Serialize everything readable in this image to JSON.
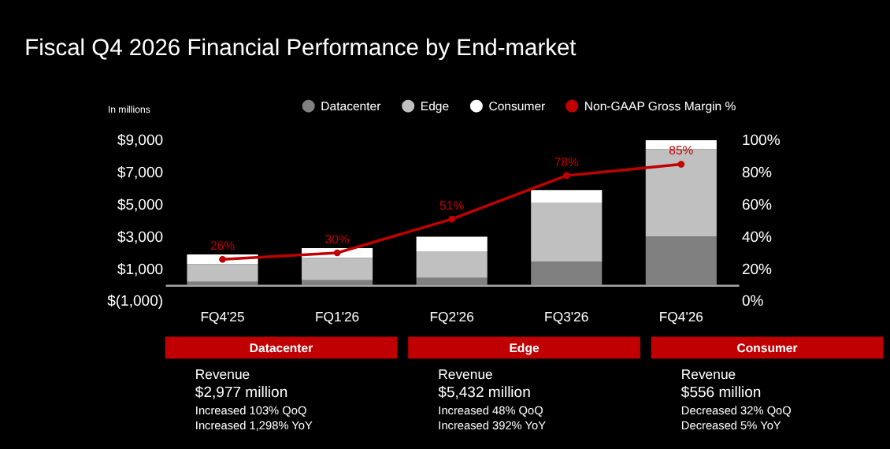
{
  "chart_data": [
    {
      "type": "bar",
      "title": "Fiscal Q4 2026 Financial Performance by End-market",
      "ylabel": "In millions",
      "categories": [
        "FQ4'25",
        "FQ1'26",
        "FQ2'26",
        "FQ3'26",
        "FQ4'26"
      ],
      "stacked": true,
      "series": [
        {
          "name": "Datacenter",
          "color": "#808080",
          "values": [
            200,
            300,
            450,
            1450,
            3000
          ]
        },
        {
          "name": "Edge",
          "color": "#c0c0c0",
          "values": [
            1100,
            1400,
            1650,
            3650,
            5450
          ]
        },
        {
          "name": "Consumer",
          "color": "#ffffff",
          "values": [
            600,
            600,
            900,
            800,
            550
          ]
        },
        {
          "name": "Non-GAAP Gross Margin %",
          "type": "line",
          "axis": "y2",
          "color": "#c00000",
          "values": [
            26,
            30,
            51,
            78,
            85
          ],
          "value_labels": [
            "26%",
            "30%",
            "51%",
            "78%",
            "85%"
          ]
        }
      ],
      "ylim": [
        -1000,
        9000
      ],
      "yticks": [
        {
          "value": -1000,
          "label": "$(1,000)"
        },
        {
          "value": 1000,
          "label": "$1,000"
        },
        {
          "value": 3000,
          "label": "$3,000"
        },
        {
          "value": 5000,
          "label": "$5,000"
        },
        {
          "value": 7000,
          "label": "$7,000"
        },
        {
          "value": 9000,
          "label": "$9,000"
        }
      ],
      "y2lim": [
        0,
        100
      ],
      "y2ticks": [
        {
          "value": 0,
          "label": "0%"
        },
        {
          "value": 20,
          "label": "20%"
        },
        {
          "value": 40,
          "label": "40%"
        },
        {
          "value": 60,
          "label": "60%"
        },
        {
          "value": 80,
          "label": "80%"
        },
        {
          "value": 100,
          "label": "100%"
        }
      ],
      "marker": "circle",
      "grid": false,
      "legend": "top"
    },
    {
      "type": "other",
      "title": "Datacenter",
      "annotations": [
        "Revenue",
        "$2,977 million",
        "Increased 103% QoQ",
        "Increased 1,298% YoY"
      ]
    },
    {
      "type": "other",
      "title": "Edge",
      "annotations": [
        "Revenue",
        "$5,432 million",
        "Increased 48% QoQ",
        "Increased 392% YoY"
      ]
    },
    {
      "type": "other",
      "title": "Consumer",
      "annotations": [
        "Revenue",
        "$556 million",
        "Decreased 32% QoQ",
        "Decreased 5% YoY"
      ]
    }
  ]
}
